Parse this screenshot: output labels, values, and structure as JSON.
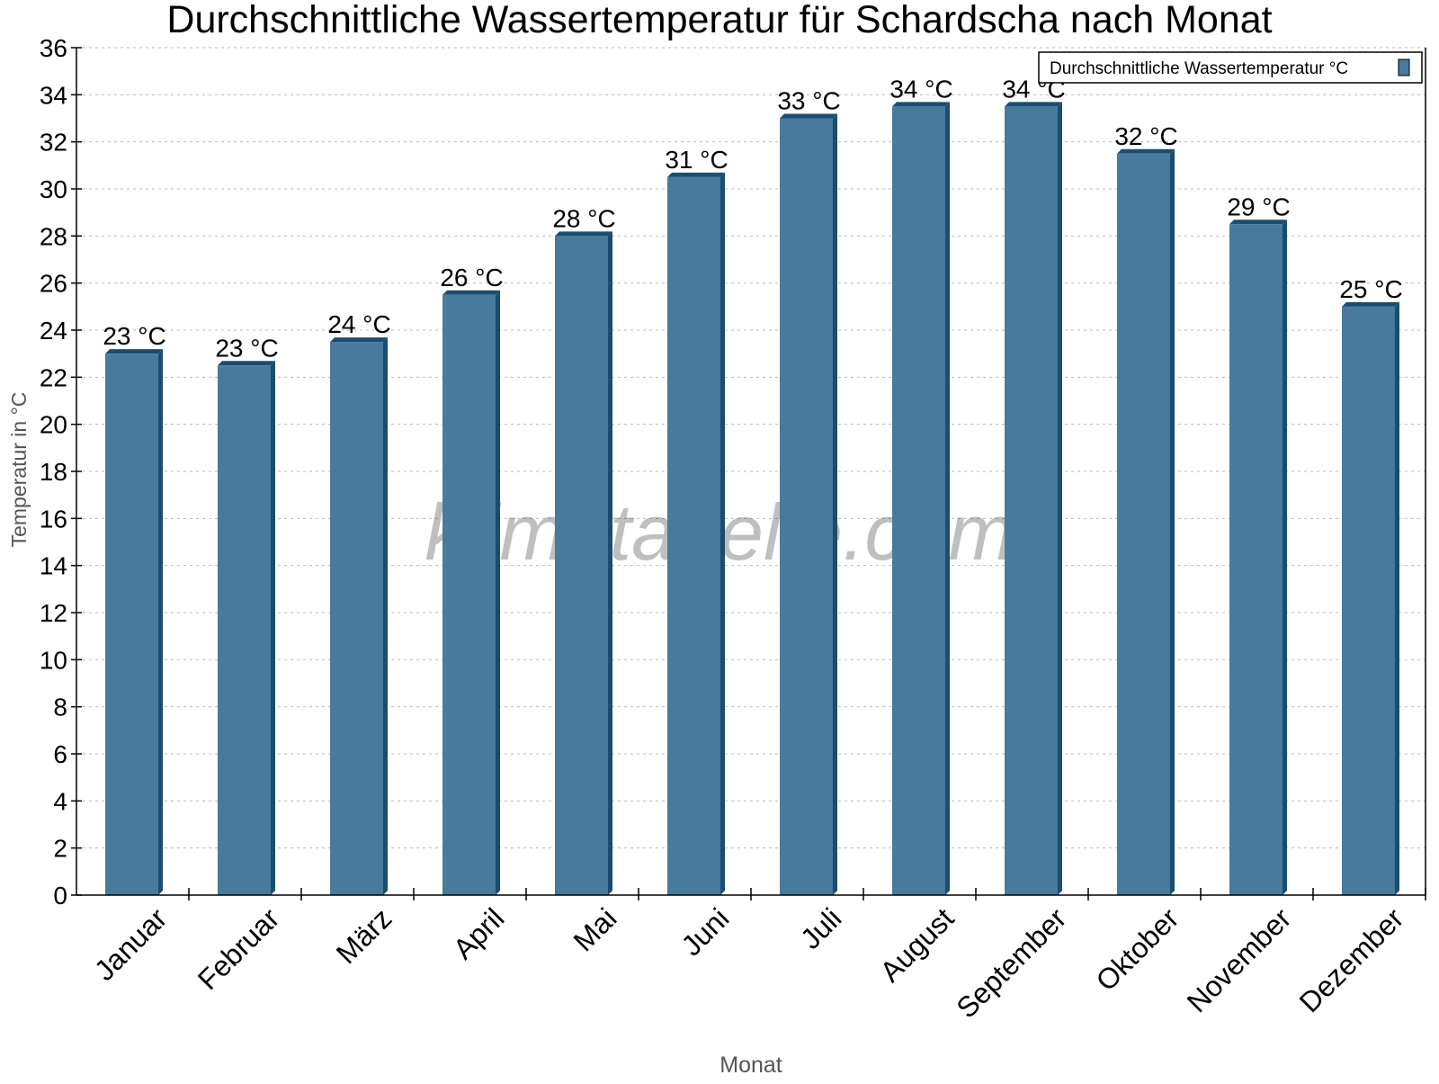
{
  "chart_data": {
    "type": "bar",
    "title": "Durchschnittliche Wassertemperatur für Schardscha nach Monat",
    "xlabel": "Monat",
    "ylabel": "Temperatur in °C",
    "ylim": [
      0,
      36
    ],
    "yticks": [
      0,
      2,
      4,
      6,
      8,
      10,
      12,
      14,
      16,
      18,
      20,
      22,
      24,
      26,
      28,
      30,
      32,
      34,
      36
    ],
    "grid": true,
    "legend_position": "top-right",
    "categories": [
      "Januar",
      "Februar",
      "März",
      "April",
      "Mai",
      "Juni",
      "Juli",
      "August",
      "September",
      "Oktober",
      "November",
      "Dezember"
    ],
    "series": [
      {
        "name": "Durchschnittliche Wassertemperatur °C",
        "color": "#467b9d",
        "side_color": "#1b4d6e",
        "values": [
          23,
          22.5,
          23.5,
          25.5,
          28,
          30.5,
          33,
          33.5,
          33.5,
          31.5,
          28.5,
          25
        ],
        "labels": [
          "23 °C",
          "23 °C",
          "24 °C",
          "26 °C",
          "28 °C",
          "31 °C",
          "33 °C",
          "34 °C",
          "34 °C",
          "32 °C",
          "29 °C",
          "25 °C"
        ]
      }
    ],
    "watermark": "klimatabelle.com"
  }
}
